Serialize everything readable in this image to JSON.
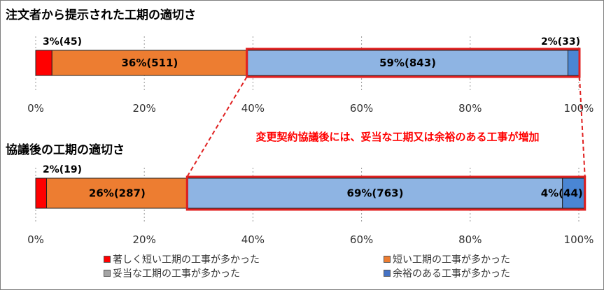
{
  "chart_data": [
    {
      "type": "bar",
      "orientation": "horizontal-stacked",
      "title": "注文者から提示された工期の適切さ",
      "xlim": [
        0,
        100
      ],
      "ticks": [
        "0%",
        "20%",
        "40%",
        "60%",
        "80%",
        "100%"
      ],
      "tick_values": [
        0,
        20,
        40,
        60,
        80,
        100
      ],
      "grid": "dotted vertical",
      "series": [
        {
          "name": "著しく短い工期の工事が多かった",
          "value": 3,
          "count": 45,
          "label": "3%(45)"
        },
        {
          "name": "短い工期の工事が多かった",
          "value": 36,
          "count": 511,
          "label": "36%(511)"
        },
        {
          "name": "妥当な工期の工事が多かった",
          "value": 59,
          "count": 843,
          "label": "59%(843)"
        },
        {
          "name": "余裕のある工事が多かった",
          "value": 2,
          "count": 33,
          "label": "2%(33)"
        }
      ]
    },
    {
      "type": "bar",
      "orientation": "horizontal-stacked",
      "title": "協議後の工期の適切さ",
      "xlim": [
        0,
        100
      ],
      "ticks": [
        "0%",
        "20%",
        "40%",
        "60%",
        "80%",
        "100%"
      ],
      "tick_values": [
        0,
        20,
        40,
        60,
        80,
        100
      ],
      "grid": "dotted vertical",
      "series": [
        {
          "name": "著しく短い工期の工事が多かった",
          "value": 2,
          "count": 19,
          "label": "2%(19)"
        },
        {
          "name": "短い工期の工事が多かった",
          "value": 26,
          "count": 287,
          "label": "26%(287)"
        },
        {
          "name": "妥当な工期の工事が多かった",
          "value": 69,
          "count": 763,
          "label": "69%(763)"
        },
        {
          "name": "余裕のある工事が多かった",
          "value": 4,
          "count": 44,
          "label": "4%(44)"
        }
      ]
    }
  ],
  "annotation": "変更契約協議後には、妥当な工期又は余裕のある工事が増加",
  "legend": {
    "placement": "bottom",
    "items": [
      {
        "label": "著しく短い工期の工事が多かった",
        "color": "#ff0000"
      },
      {
        "label": "短い工期の工事が多かった",
        "color": "#ed7d31"
      },
      {
        "label": "妥当な工期の工事が多かった",
        "color": "#a5a5a5"
      },
      {
        "label": "余裕のある工事が多かった",
        "color": "#4472c4"
      }
    ]
  },
  "colors": {
    "very_short": "#ff0000",
    "short": "#ed7d31",
    "appropriate": "#8eb4e3",
    "ample": "#4a86d4",
    "highlight": "#e02020",
    "annotation_text": "#ff0000"
  }
}
